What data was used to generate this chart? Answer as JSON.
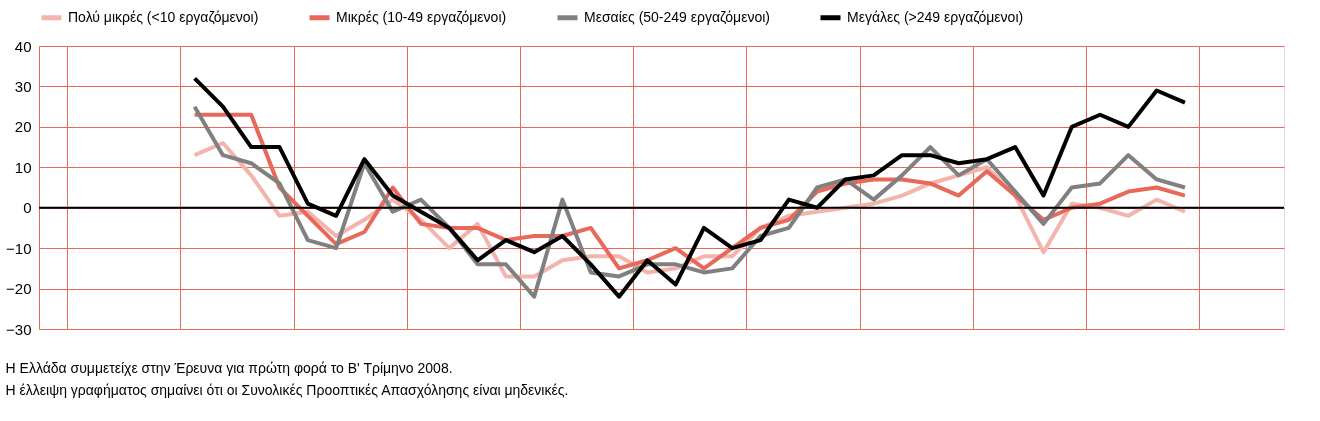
{
  "chart_data": {
    "type": "line",
    "categories": [
      null,
      null,
      null,
      null,
      null,
      null,
      null,
      null,
      null,
      null,
      null,
      null,
      null,
      null,
      null,
      null,
      null,
      null,
      null,
      null,
      null,
      null,
      null,
      null,
      null,
      null,
      null,
      null,
      null,
      null,
      null,
      null,
      null,
      null,
      null,
      null,
      null,
      null,
      null,
      null,
      null,
      null,
      null,
      null
    ],
    "series": [
      {
        "name": "Πολύ μικρές (<10 εργαζόμενοι)",
        "color": "#f4b3ab",
        "values": [
          null,
          null,
          null,
          null,
          null,
          13,
          16,
          8,
          -2,
          -1,
          -7,
          -3,
          2,
          -3,
          -10,
          -4,
          -17,
          -17,
          -13,
          -12,
          -12,
          -16,
          -15,
          -12,
          -12,
          -5,
          -2,
          -1,
          0,
          1,
          3,
          6,
          8,
          10,
          3,
          -11,
          1,
          0,
          -2,
          2,
          -1,
          null,
          null,
          null
        ]
      },
      {
        "name": "Μικρές (10-49 εργαζόμενοι)",
        "color": "#e8685a",
        "values": [
          null,
          null,
          null,
          null,
          null,
          23,
          23,
          23,
          5,
          -2,
          -9,
          -6,
          5,
          -4,
          -5,
          -5,
          -8,
          -7,
          -7,
          -5,
          -15,
          -13,
          -10,
          -15,
          -10,
          -5,
          -3,
          4,
          6,
          7,
          7,
          6,
          3,
          9,
          3,
          -3,
          0,
          1,
          4,
          5,
          3,
          null,
          null,
          null
        ]
      },
      {
        "name": "Μεσαίες (50-249 εργαζόμενοι)",
        "color": "#808080",
        "values": [
          null,
          null,
          null,
          null,
          null,
          25,
          13,
          11,
          6,
          -8,
          -10,
          11,
          -1,
          2,
          -5,
          -14,
          -14,
          -22,
          2,
          -16,
          -17,
          -14,
          -14,
          -16,
          -15,
          -7,
          -5,
          5,
          7,
          2,
          8,
          15,
          8,
          12,
          4,
          -4,
          5,
          6,
          13,
          7,
          5,
          null,
          null,
          null
        ]
      },
      {
        "name": "Μεγάλες (>249 εργαζόμενοι)",
        "color": "#000000",
        "values": [
          null,
          null,
          null,
          null,
          null,
          32,
          25,
          15,
          15,
          1,
          -2,
          12,
          3,
          -1,
          -5,
          -13,
          -8,
          -11,
          -7,
          -14,
          -22,
          -13,
          -19,
          -5,
          -10,
          -8,
          2,
          0,
          7,
          8,
          13,
          13,
          11,
          12,
          15,
          3,
          20,
          23,
          20,
          29,
          26,
          null,
          null,
          null
        ]
      }
    ],
    "ylim": [
      -30,
      40
    ],
    "yticks": [
      -30,
      -20,
      -10,
      0,
      10,
      20,
      30,
      40
    ],
    "ref_lines": [
      {
        "axis": "y",
        "value": 0,
        "color": "#000000"
      }
    ],
    "grid": true,
    "legend": "top",
    "marker": "none",
    "line_style": "solid",
    "annotations": [
      "Η Ελλάδα συμμετείχε στην Έρευνα για πρώτη φορά το Β' Τρίμηνο 2008.",
      "Η έλλειψη γραφήματος σημαίνει ότι οι Συνολικές Προοπτικές Απασχόλησης είναι μηδενικές."
    ]
  }
}
